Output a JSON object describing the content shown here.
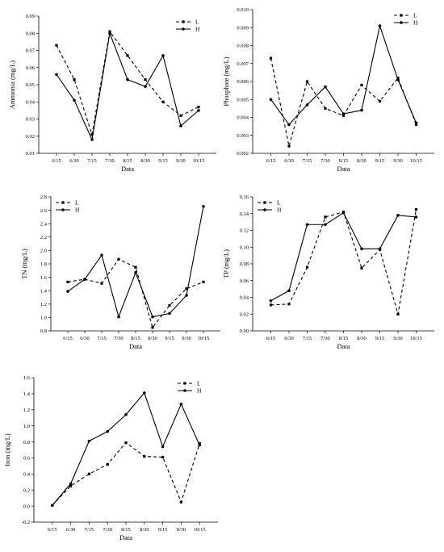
{
  "chart_data": [
    {
      "id": "ammonia",
      "type": "line",
      "categories": [
        "6/15",
        "6/30",
        "7/15",
        "7/30",
        "8/15",
        "8/30",
        "9/15",
        "9/30",
        "10/15"
      ],
      "series": [
        {
          "name": "L",
          "style": "dashed",
          "marker": "square",
          "values": [
            0.073,
            0.053,
            0.021,
            0.081,
            0.067,
            0.053,
            0.04,
            0.032,
            0.037
          ]
        },
        {
          "name": "H",
          "style": "solid",
          "marker": "circle",
          "values": [
            0.056,
            0.041,
            0.018,
            0.08,
            0.053,
            0.049,
            0.067,
            0.026,
            0.035
          ]
        }
      ],
      "xlabel": "Data",
      "ylabel": "Ammonia (mg/L)",
      "ylim": [
        0.01,
        0.09
      ],
      "yticks": [
        "0.01",
        "0.02",
        "0.03",
        "0.04",
        "0.05",
        "0.06",
        "0.07",
        "0.08",
        "0.09"
      ],
      "legend_position": "top-right"
    },
    {
      "id": "phosphate",
      "type": "line",
      "categories": [
        "6/15",
        "6/30",
        "7/15",
        "7/30",
        "8/15",
        "8/30",
        "9/15",
        "9/30",
        "10/15"
      ],
      "series": [
        {
          "name": "L",
          "style": "dashed",
          "marker": "square",
          "values": [
            0.0073,
            0.0024,
            0.006,
            0.0045,
            0.0041,
            0.0058,
            0.0049,
            0.0062,
            0.0036
          ]
        },
        {
          "name": "H",
          "style": "solid",
          "marker": "circle",
          "values": [
            0.005,
            0.0036,
            0.0047,
            0.0057,
            0.0042,
            0.0044,
            0.0091,
            0.0061,
            0.0037
          ]
        }
      ],
      "xlabel": "Data",
      "ylabel": "Phosphate (mg/L)",
      "ylim": [
        0.002,
        0.01
      ],
      "yticks": [
        "0.002",
        "0.003",
        "0.004",
        "0.005",
        "0.006",
        "0.007",
        "0.008",
        "0.009",
        "0.010"
      ],
      "legend_position": "top-right"
    },
    {
      "id": "tn",
      "type": "line",
      "categories": [
        "6/15",
        "6/30",
        "7/15",
        "7/30",
        "8/15",
        "8/30",
        "9/15",
        "9/30",
        "10/15"
      ],
      "series": [
        {
          "name": "L",
          "style": "dashed",
          "marker": "square",
          "values": [
            1.53,
            1.57,
            1.51,
            1.87,
            1.75,
            0.85,
            1.18,
            1.43,
            1.53
          ]
        },
        {
          "name": "H",
          "style": "solid",
          "marker": "circle",
          "values": [
            1.39,
            1.57,
            1.93,
            1.01,
            1.67,
            1.01,
            1.06,
            1.33,
            2.66
          ]
        }
      ],
      "xlabel": "Data",
      "ylabel": "TN (mg/L)",
      "ylim": [
        0.8,
        2.8
      ],
      "yticks": [
        "0.8",
        "1.0",
        "1.2",
        "1.4",
        "1.6",
        "1.8",
        "2.0",
        "2.2",
        "2.4",
        "2.6",
        "2.8"
      ],
      "legend_position": "top-left"
    },
    {
      "id": "tp",
      "type": "line",
      "categories": [
        "6/15",
        "6/30",
        "7/15",
        "7/30",
        "8/15",
        "8/30",
        "9/15",
        "9/30",
        "10/15"
      ],
      "series": [
        {
          "name": "L",
          "style": "dashed",
          "marker": "square",
          "values": [
            0.031,
            0.032,
            0.076,
            0.136,
            0.142,
            0.075,
            0.097,
            0.02,
            0.145
          ]
        },
        {
          "name": "H",
          "style": "solid",
          "marker": "circle",
          "values": [
            0.036,
            0.048,
            0.127,
            0.127,
            0.141,
            0.098,
            0.098,
            0.138,
            0.136
          ]
        }
      ],
      "xlabel": "Data",
      "ylabel": "TP (mg/L)",
      "ylim": [
        0.0,
        0.16
      ],
      "yticks": [
        "0.00",
        "0.02",
        "0.04",
        "0.06",
        "0.08",
        "0.10",
        "0.12",
        "0.14",
        "0.16"
      ],
      "legend_position": "top-left"
    },
    {
      "id": "iron",
      "type": "line",
      "categories": [
        "6/15",
        "6/30",
        "7/15",
        "7/30",
        "8/15",
        "8/30",
        "9/15",
        "9/30",
        "10/15"
      ],
      "series": [
        {
          "name": "L",
          "style": "dashed",
          "marker": "square",
          "values": [
            0.01,
            0.25,
            0.4,
            0.52,
            0.79,
            0.62,
            0.61,
            0.05,
            0.78
          ]
        },
        {
          "name": "H",
          "style": "solid",
          "marker": "circle",
          "values": [
            0.01,
            0.28,
            0.81,
            0.93,
            1.14,
            1.41,
            0.74,
            1.27,
            0.76
          ]
        }
      ],
      "xlabel": "Data",
      "ylabel": "Iron (mg/L)",
      "ylim": [
        -0.2,
        1.6
      ],
      "yticks": [
        "-0.2",
        "0.0",
        "0.2",
        "0.4",
        "0.6",
        "0.8",
        "1.0",
        "1.2",
        "1.4",
        "1.6"
      ],
      "legend_position": "top-right"
    }
  ]
}
